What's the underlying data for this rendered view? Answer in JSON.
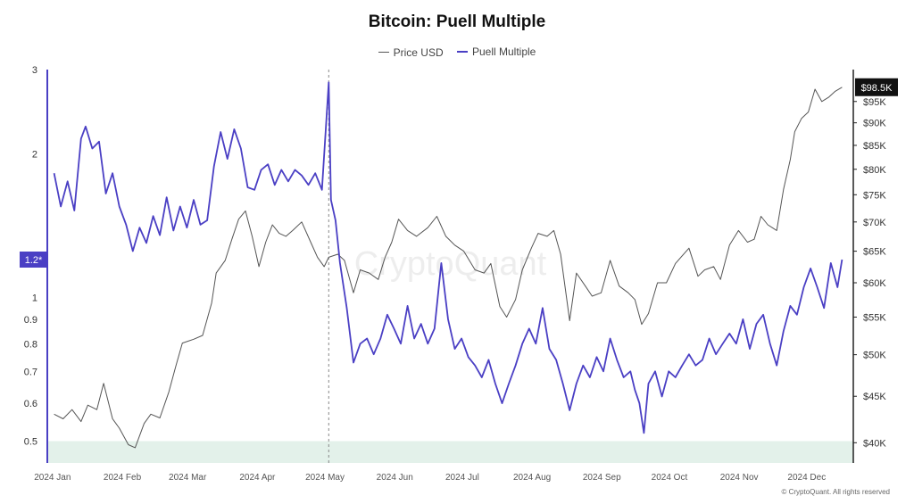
{
  "chart_data": {
    "type": "line",
    "title": "Bitcoin: Puell Multiple",
    "watermark": "CryptoQuant",
    "copyright": "© CryptoQuant. All rights reserved",
    "x_ticks": [
      "2024 Jan",
      "2024 Feb",
      "2024 Mar",
      "2024 Apr",
      "2024 May",
      "2024 Jun",
      "2024 Jul",
      "2024 Aug",
      "2024 Sep",
      "2024 Oct",
      "2024 Nov",
      "2024 Dec"
    ],
    "left_axis": {
      "scale": "log",
      "ylim": [
        0.45,
        3
      ],
      "ticks": [
        "0.5",
        "0.6",
        "0.7",
        "0.8",
        "0.9",
        "1",
        "2",
        "3"
      ],
      "current_label": "1.2*",
      "current_value": 1.2
    },
    "right_axis": {
      "scale": "log",
      "ylim": [
        38000,
        103000
      ],
      "ticks": [
        "$40K",
        "$45K",
        "$50K",
        "$55K",
        "$60K",
        "$65K",
        "$70K",
        "$75K",
        "$80K",
        "$85K",
        "$90K",
        "$95K"
      ],
      "current_label": "$98.5K",
      "current_value": 98500
    },
    "shaded_band": {
      "from": 0.45,
      "to": 0.5,
      "color": "#e3f1ea"
    },
    "halving_marker_date": "2024-04-20",
    "series": [
      {
        "name": "Price USD",
        "axis": "right",
        "color": "#555555",
        "points": [
          [
            "2023-12-20",
            43000
          ],
          [
            "2023-12-24",
            42500
          ],
          [
            "2023-12-28",
            43500
          ],
          [
            "2024-01-01",
            42200
          ],
          [
            "2024-01-04",
            44000
          ],
          [
            "2024-01-08",
            43500
          ],
          [
            "2024-01-11",
            46500
          ],
          [
            "2024-01-15",
            42500
          ],
          [
            "2024-01-18",
            41500
          ],
          [
            "2024-01-22",
            39800
          ],
          [
            "2024-01-25",
            39500
          ],
          [
            "2024-01-29",
            42000
          ],
          [
            "2024-02-01",
            43000
          ],
          [
            "2024-02-05",
            42600
          ],
          [
            "2024-02-09",
            45500
          ],
          [
            "2024-02-12",
            48500
          ],
          [
            "2024-02-15",
            51500
          ],
          [
            "2024-02-20",
            52000
          ],
          [
            "2024-02-24",
            52500
          ],
          [
            "2024-02-28",
            57000
          ],
          [
            "2024-03-01",
            61500
          ],
          [
            "2024-03-05",
            63500
          ],
          [
            "2024-03-08",
            67000
          ],
          [
            "2024-03-11",
            70500
          ],
          [
            "2024-03-14",
            72000
          ],
          [
            "2024-03-17",
            67500
          ],
          [
            "2024-03-20",
            62500
          ],
          [
            "2024-03-23",
            66500
          ],
          [
            "2024-03-26",
            69500
          ],
          [
            "2024-03-29",
            68000
          ],
          [
            "2024-04-01",
            67500
          ],
          [
            "2024-04-04",
            68500
          ],
          [
            "2024-04-08",
            70000
          ],
          [
            "2024-04-12",
            66500
          ],
          [
            "2024-04-15",
            64000
          ],
          [
            "2024-04-18",
            62500
          ],
          [
            "2024-04-20",
            64000
          ],
          [
            "2024-04-24",
            64500
          ],
          [
            "2024-04-27",
            63500
          ],
          [
            "2024-05-01",
            58500
          ],
          [
            "2024-05-04",
            62000
          ],
          [
            "2024-05-08",
            61500
          ],
          [
            "2024-05-12",
            60500
          ],
          [
            "2024-05-15",
            64000
          ],
          [
            "2024-05-18",
            66500
          ],
          [
            "2024-05-21",
            70500
          ],
          [
            "2024-05-25",
            68500
          ],
          [
            "2024-05-29",
            67500
          ],
          [
            "2024-06-03",
            69000
          ],
          [
            "2024-06-07",
            71000
          ],
          [
            "2024-06-11",
            67500
          ],
          [
            "2024-06-15",
            66000
          ],
          [
            "2024-06-19",
            65000
          ],
          [
            "2024-06-24",
            62000
          ],
          [
            "2024-06-28",
            61500
          ],
          [
            "2024-07-01",
            63000
          ],
          [
            "2024-07-05",
            56500
          ],
          [
            "2024-07-08",
            55000
          ],
          [
            "2024-07-12",
            57500
          ],
          [
            "2024-07-15",
            62000
          ],
          [
            "2024-07-19",
            65500
          ],
          [
            "2024-07-22",
            68000
          ],
          [
            "2024-07-26",
            67500
          ],
          [
            "2024-07-29",
            68500
          ],
          [
            "2024-08-01",
            64500
          ],
          [
            "2024-08-05",
            54500
          ],
          [
            "2024-08-08",
            61500
          ],
          [
            "2024-08-12",
            59500
          ],
          [
            "2024-08-15",
            58000
          ],
          [
            "2024-08-19",
            58500
          ],
          [
            "2024-08-23",
            63500
          ],
          [
            "2024-08-27",
            59500
          ],
          [
            "2024-08-31",
            58500
          ],
          [
            "2024-09-03",
            57500
          ],
          [
            "2024-09-06",
            54000
          ],
          [
            "2024-09-09",
            55500
          ],
          [
            "2024-09-13",
            60000
          ],
          [
            "2024-09-17",
            60000
          ],
          [
            "2024-09-21",
            63000
          ],
          [
            "2024-09-27",
            65500
          ],
          [
            "2024-10-01",
            61000
          ],
          [
            "2024-10-04",
            62000
          ],
          [
            "2024-10-08",
            62500
          ],
          [
            "2024-10-11",
            60500
          ],
          [
            "2024-10-15",
            66000
          ],
          [
            "2024-10-19",
            68500
          ],
          [
            "2024-10-23",
            66500
          ],
          [
            "2024-10-26",
            67000
          ],
          [
            "2024-10-29",
            71000
          ],
          [
            "2024-11-01",
            69500
          ],
          [
            "2024-11-05",
            68500
          ],
          [
            "2024-11-08",
            76000
          ],
          [
            "2024-11-11",
            82000
          ],
          [
            "2024-11-13",
            88000
          ],
          [
            "2024-11-16",
            91000
          ],
          [
            "2024-11-19",
            92500
          ],
          [
            "2024-11-22",
            98000
          ],
          [
            "2024-11-25",
            95000
          ],
          [
            "2024-11-28",
            96000
          ],
          [
            "2024-12-01",
            97500
          ],
          [
            "2024-12-04",
            98500
          ]
        ]
      },
      {
        "name": "Puell Multiple",
        "axis": "left",
        "color": "#4a3fc4",
        "points": [
          [
            "2023-12-20",
            1.82
          ],
          [
            "2023-12-23",
            1.55
          ],
          [
            "2023-12-26",
            1.75
          ],
          [
            "2023-12-29",
            1.52
          ],
          [
            "2024-01-01",
            2.15
          ],
          [
            "2024-01-03",
            2.28
          ],
          [
            "2024-01-06",
            2.05
          ],
          [
            "2024-01-09",
            2.12
          ],
          [
            "2024-01-12",
            1.65
          ],
          [
            "2024-01-15",
            1.82
          ],
          [
            "2024-01-18",
            1.55
          ],
          [
            "2024-01-21",
            1.42
          ],
          [
            "2024-01-24",
            1.25
          ],
          [
            "2024-01-27",
            1.4
          ],
          [
            "2024-01-30",
            1.3
          ],
          [
            "2024-02-02",
            1.48
          ],
          [
            "2024-02-05",
            1.35
          ],
          [
            "2024-02-08",
            1.62
          ],
          [
            "2024-02-11",
            1.38
          ],
          [
            "2024-02-14",
            1.55
          ],
          [
            "2024-02-17",
            1.4
          ],
          [
            "2024-02-20",
            1.6
          ],
          [
            "2024-02-23",
            1.42
          ],
          [
            "2024-02-26",
            1.45
          ],
          [
            "2024-02-29",
            1.88
          ],
          [
            "2024-03-03",
            2.22
          ],
          [
            "2024-03-06",
            1.95
          ],
          [
            "2024-03-09",
            2.25
          ],
          [
            "2024-03-12",
            2.05
          ],
          [
            "2024-03-15",
            1.7
          ],
          [
            "2024-03-18",
            1.68
          ],
          [
            "2024-03-21",
            1.85
          ],
          [
            "2024-03-24",
            1.9
          ],
          [
            "2024-03-27",
            1.72
          ],
          [
            "2024-03-30",
            1.85
          ],
          [
            "2024-04-02",
            1.75
          ],
          [
            "2024-04-05",
            1.85
          ],
          [
            "2024-04-08",
            1.8
          ],
          [
            "2024-04-11",
            1.72
          ],
          [
            "2024-04-14",
            1.82
          ],
          [
            "2024-04-17",
            1.68
          ],
          [
            "2024-04-20",
            2.82
          ],
          [
            "2024-04-21",
            1.6
          ],
          [
            "2024-04-23",
            1.45
          ],
          [
            "2024-04-25",
            1.18
          ],
          [
            "2024-04-28",
            0.95
          ],
          [
            "2024-05-01",
            0.73
          ],
          [
            "2024-05-04",
            0.8
          ],
          [
            "2024-05-07",
            0.82
          ],
          [
            "2024-05-10",
            0.76
          ],
          [
            "2024-05-13",
            0.82
          ],
          [
            "2024-05-16",
            0.92
          ],
          [
            "2024-05-19",
            0.86
          ],
          [
            "2024-05-22",
            0.8
          ],
          [
            "2024-05-25",
            0.96
          ],
          [
            "2024-05-28",
            0.82
          ],
          [
            "2024-05-31",
            0.88
          ],
          [
            "2024-06-03",
            0.8
          ],
          [
            "2024-06-06",
            0.86
          ],
          [
            "2024-06-09",
            1.18
          ],
          [
            "2024-06-12",
            0.9
          ],
          [
            "2024-06-15",
            0.78
          ],
          [
            "2024-06-18",
            0.82
          ],
          [
            "2024-06-21",
            0.75
          ],
          [
            "2024-06-24",
            0.72
          ],
          [
            "2024-06-27",
            0.68
          ],
          [
            "2024-06-30",
            0.74
          ],
          [
            "2024-07-03",
            0.66
          ],
          [
            "2024-07-06",
            0.6
          ],
          [
            "2024-07-09",
            0.66
          ],
          [
            "2024-07-12",
            0.72
          ],
          [
            "2024-07-15",
            0.8
          ],
          [
            "2024-07-18",
            0.86
          ],
          [
            "2024-07-21",
            0.8
          ],
          [
            "2024-07-24",
            0.95
          ],
          [
            "2024-07-27",
            0.78
          ],
          [
            "2024-07-30",
            0.74
          ],
          [
            "2024-08-02",
            0.66
          ],
          [
            "2024-08-05",
            0.58
          ],
          [
            "2024-08-08",
            0.66
          ],
          [
            "2024-08-11",
            0.72
          ],
          [
            "2024-08-14",
            0.68
          ],
          [
            "2024-08-17",
            0.75
          ],
          [
            "2024-08-20",
            0.7
          ],
          [
            "2024-08-23",
            0.82
          ],
          [
            "2024-08-26",
            0.74
          ],
          [
            "2024-08-29",
            0.68
          ],
          [
            "2024-09-01",
            0.7
          ],
          [
            "2024-09-03",
            0.64
          ],
          [
            "2024-09-05",
            0.6
          ],
          [
            "2024-09-07",
            0.52
          ],
          [
            "2024-09-09",
            0.66
          ],
          [
            "2024-09-12",
            0.7
          ],
          [
            "2024-09-15",
            0.62
          ],
          [
            "2024-09-18",
            0.7
          ],
          [
            "2024-09-21",
            0.68
          ],
          [
            "2024-09-24",
            0.72
          ],
          [
            "2024-09-27",
            0.76
          ],
          [
            "2024-09-30",
            0.72
          ],
          [
            "2024-10-03",
            0.74
          ],
          [
            "2024-10-06",
            0.82
          ],
          [
            "2024-10-09",
            0.76
          ],
          [
            "2024-10-12",
            0.8
          ],
          [
            "2024-10-15",
            0.84
          ],
          [
            "2024-10-18",
            0.8
          ],
          [
            "2024-10-21",
            0.9
          ],
          [
            "2024-10-24",
            0.78
          ],
          [
            "2024-10-27",
            0.88
          ],
          [
            "2024-10-30",
            0.92
          ],
          [
            "2024-11-02",
            0.8
          ],
          [
            "2024-11-05",
            0.72
          ],
          [
            "2024-11-08",
            0.85
          ],
          [
            "2024-11-11",
            0.96
          ],
          [
            "2024-11-14",
            0.92
          ],
          [
            "2024-11-17",
            1.05
          ],
          [
            "2024-11-20",
            1.15
          ],
          [
            "2024-11-23",
            1.05
          ],
          [
            "2024-11-26",
            0.95
          ],
          [
            "2024-11-29",
            1.18
          ],
          [
            "2024-12-02",
            1.05
          ],
          [
            "2024-12-04",
            1.2
          ]
        ]
      }
    ]
  }
}
